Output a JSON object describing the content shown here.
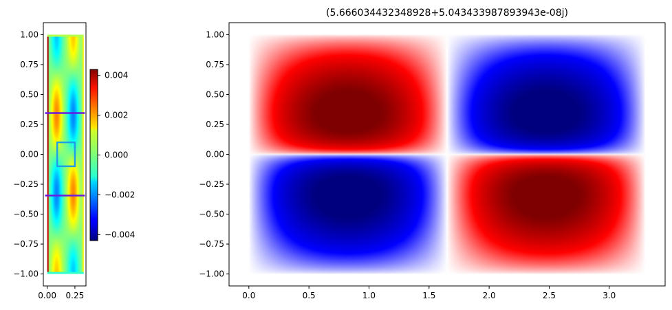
{
  "chart_data": [
    {
      "type": "heatmap",
      "title": "",
      "xlabel": "",
      "ylabel": "",
      "xlim": [
        -0.035,
        0.35
      ],
      "ylim": [
        -1.1,
        1.1
      ],
      "x_ticks": [
        "0.00",
        "0.25"
      ],
      "y_ticks": [
        "1.00",
        "0.75",
        "0.50",
        "0.25",
        "0.00",
        "−0.25",
        "−0.50",
        "−0.75",
        "−1.00"
      ],
      "colormap": "jet",
      "domain": {
        "x": [
          0,
          0.33
        ],
        "y": [
          -1,
          1
        ]
      },
      "overlay_lines_y": [
        0.345,
        -0.345
      ],
      "overlay_box": {
        "x": [
          0.09,
          0.25
        ],
        "y": [
          -0.1,
          0.1
        ]
      },
      "colorbar": {
        "range": [
          -0.0043,
          0.0043
        ],
        "ticks": [
          "0.004",
          "0.002",
          "0.000",
          "−0.002",
          "−0.004"
        ]
      },
      "colors": {
        "line": "#6a1be0",
        "box": "#1e9fe6"
      }
    },
    {
      "type": "heatmap",
      "title": "(5.666034432348928+5.043433987893943e-08j)",
      "xlabel": "",
      "ylabel": "",
      "xlim": [
        -0.165,
        3.465
      ],
      "ylim": [
        -1.1,
        1.1
      ],
      "x_ticks": [
        "0.0",
        "0.5",
        "1.0",
        "1.5",
        "2.0",
        "2.5",
        "3.0"
      ],
      "y_ticks": [
        "1.00",
        "0.75",
        "0.50",
        "0.25",
        "0.00",
        "−0.25",
        "−0.50",
        "−0.75",
        "−1.00"
      ],
      "colormap": "seismic",
      "domain": {
        "x": [
          0,
          3.3
        ],
        "y": [
          -1,
          1
        ]
      },
      "lobes": [
        {
          "quadrant": "top-left",
          "sign": 1,
          "peak": [
            0.75,
            0.28
          ]
        },
        {
          "quadrant": "top-right",
          "sign": -1,
          "peak": [
            2.45,
            0.28
          ]
        },
        {
          "quadrant": "bottom-left",
          "sign": -1,
          "peak": [
            0.75,
            -0.28
          ]
        },
        {
          "quadrant": "bottom-right",
          "sign": 1,
          "peak": [
            2.45,
            -0.28
          ]
        }
      ]
    }
  ]
}
